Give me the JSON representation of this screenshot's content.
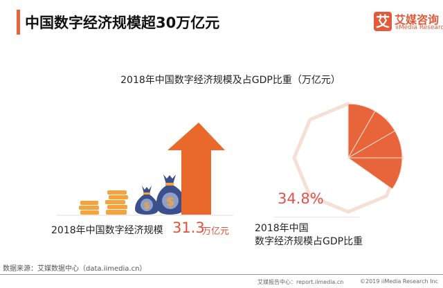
{
  "header": {
    "title": "中国数字经济规模超30万亿元",
    "logo_mark": "艾",
    "logo_cn": "艾媒咨询",
    "logo_en": "iiMedia Research"
  },
  "chart_title": "2018年中国数字经济规模及占GDP比重（万亿元）",
  "left": {
    "label": "2018年中国数字经济规模",
    "value": "31.3",
    "unit": "万亿元"
  },
  "right": {
    "percent_label": "34.8%",
    "percent": 34.8,
    "label_line1": "2018年中国",
    "label_line2": "数字经济规模占GDP比重"
  },
  "colors": {
    "accent": "#e8643a",
    "coin": "#f5a33c",
    "bag": "#3b4f8c",
    "ring": "#f6e0d6",
    "value_red": "#e0503a"
  },
  "footer": {
    "source": "数据来源：艾媒数据中心（data.iimedia.cn）",
    "report": "艾媒报告中心：report.iimedia.cn",
    "copyright": "©2019  iiMedia Research  Inc"
  }
}
